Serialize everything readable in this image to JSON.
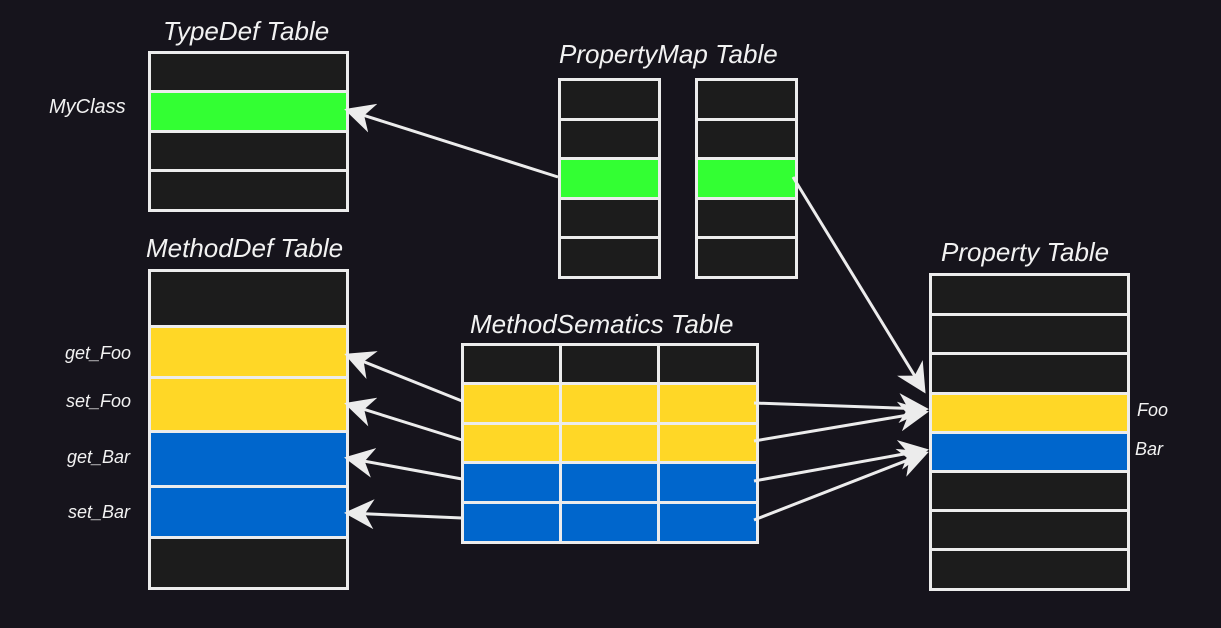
{
  "colors": {
    "background": "#16141c",
    "empty": "#1c1c1c",
    "border": "#ececec",
    "green": "#33ff33",
    "yellow": "#ffd726",
    "blue": "#0066cc",
    "text": "#f2f2f2"
  },
  "tables": {
    "typedef": {
      "title": "TypeDef Table",
      "rows": [
        "empty",
        "green",
        "empty",
        "empty"
      ]
    },
    "propertymap": {
      "title": "PropertyMap Table",
      "rows": [
        "empty",
        "empty",
        "green",
        "empty",
        "empty"
      ]
    },
    "methoddef": {
      "title": "MethodDef Table",
      "rows": [
        "empty",
        "yellow",
        "yellow",
        "blue",
        "blue",
        "empty"
      ]
    },
    "methodsemantics": {
      "title": "MethodSematics Table",
      "rows": [
        "empty",
        "yellow",
        "yellow",
        "blue",
        "blue"
      ]
    },
    "property": {
      "title": "Property Table",
      "rows": [
        "empty",
        "empty",
        "empty",
        "yellow",
        "blue",
        "empty",
        "empty",
        "empty"
      ]
    }
  },
  "labels": {
    "myclass": "MyClass",
    "get_foo": "get_Foo",
    "set_foo": "set_Foo",
    "get_bar": "get_Bar",
    "set_bar": "set_Bar",
    "foo": "Foo",
    "bar": "Bar"
  }
}
